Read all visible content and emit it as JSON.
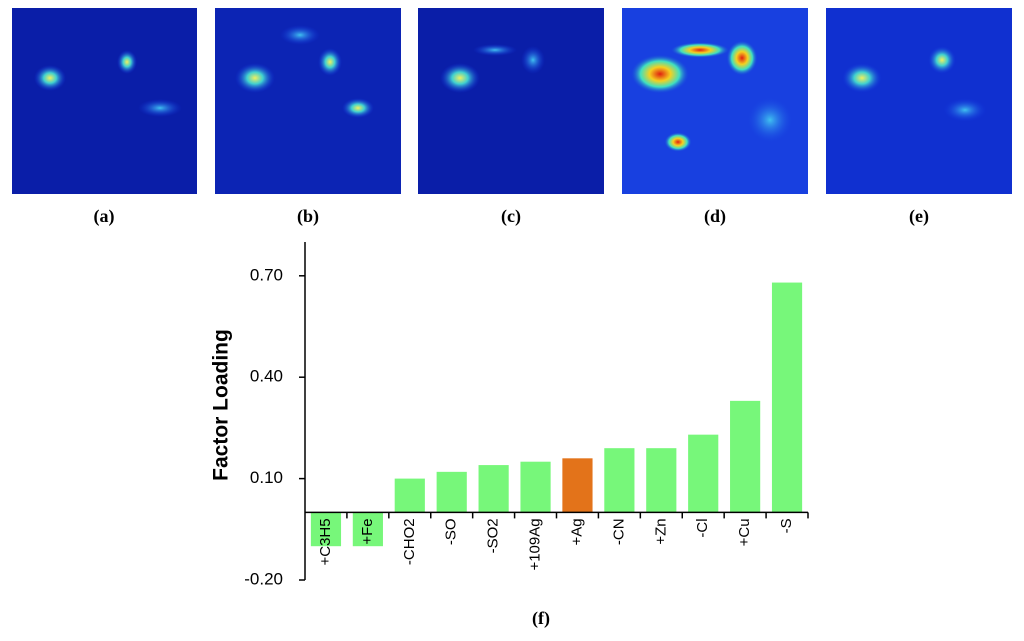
{
  "panels": [
    {
      "label": "(a)"
    },
    {
      "label": "(b)"
    },
    {
      "label": "(c)"
    },
    {
      "label": "(d)"
    },
    {
      "label": "(e)"
    }
  ],
  "chart_data": {
    "type": "bar",
    "label": "(f)",
    "y_label": "Factor Loading",
    "categories": [
      "+C3H5",
      "+Fe",
      "-CHO2",
      "-SO",
      "-SO2",
      "+109Ag",
      "+Ag",
      "-CN",
      "+Zn",
      "-Cl",
      "+Cu",
      "-S"
    ],
    "values": [
      -0.1,
      -0.1,
      0.1,
      0.12,
      0.14,
      0.15,
      0.16,
      0.19,
      0.19,
      0.23,
      0.33,
      0.68
    ],
    "colors": [
      "#77f77a",
      "#77f77a",
      "#77f77a",
      "#77f77a",
      "#77f77a",
      "#77f77a",
      "#e3731a",
      "#77f77a",
      "#77f77a",
      "#77f77a",
      "#77f77a",
      "#77f77a"
    ],
    "ylim": [
      -0.2,
      0.8
    ],
    "yticks": [
      {
        "value": -0.2,
        "label": "-0.20"
      },
      {
        "value": 0.1,
        "label": "0.10"
      },
      {
        "value": 0.4,
        "label": "0.40"
      },
      {
        "value": 0.7,
        "label": "0.70"
      }
    ],
    "grid": false
  }
}
